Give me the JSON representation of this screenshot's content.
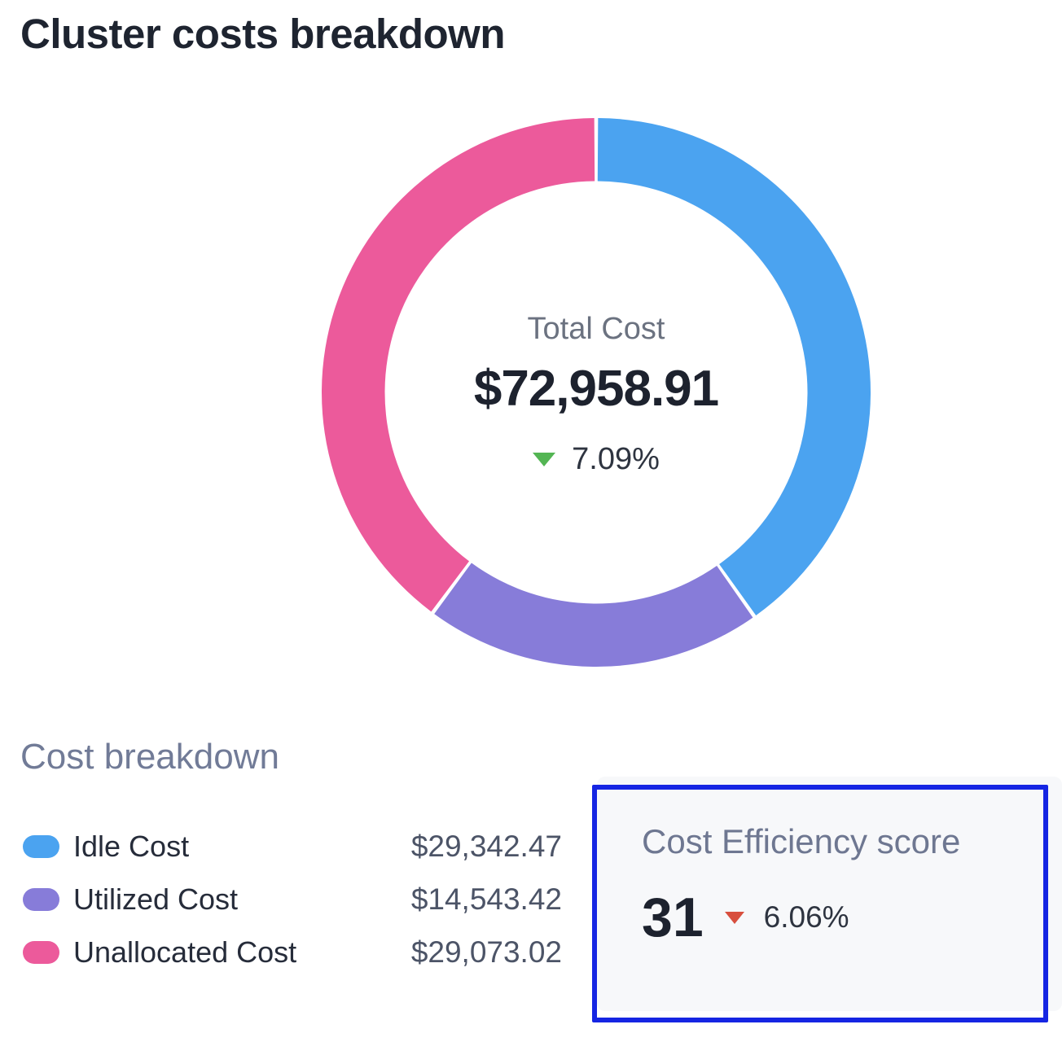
{
  "page": {
    "title": "Cluster costs breakdown",
    "background": "#ffffff"
  },
  "chart_data": {
    "type": "pie",
    "variant": "donut",
    "title": "Cluster costs breakdown",
    "total": 72958.91,
    "center": {
      "label": "Total Cost",
      "value": "$72,958.91",
      "change": "7.09%",
      "change_direction": "down",
      "change_color": "#53b553"
    },
    "start_angle_deg": 0,
    "direction": "clockwise",
    "legend_position": "bottom-left",
    "segments": [
      {
        "label": "Idle Cost",
        "value": 29342.47,
        "display_value": "$29,342.47",
        "percent": 40.2,
        "color": "#4BA3F0"
      },
      {
        "label": "Utilized Cost",
        "value": 14543.42,
        "display_value": "$14,543.42",
        "percent": 19.9,
        "color": "#877CD9"
      },
      {
        "label": "Unallocated Cost",
        "value": 29073.02,
        "display_value": "$29,073.02",
        "percent": 39.9,
        "color": "#EC5A9B"
      }
    ]
  },
  "breakdown": {
    "heading": "Cost breakdown"
  },
  "efficiency": {
    "label": "Cost Efficiency score",
    "score": "31",
    "change": "6.06%",
    "change_direction": "down",
    "change_color": "#D84F3E",
    "card_background": "#F7F8FA",
    "highlight_border_color": "#1525E3"
  }
}
